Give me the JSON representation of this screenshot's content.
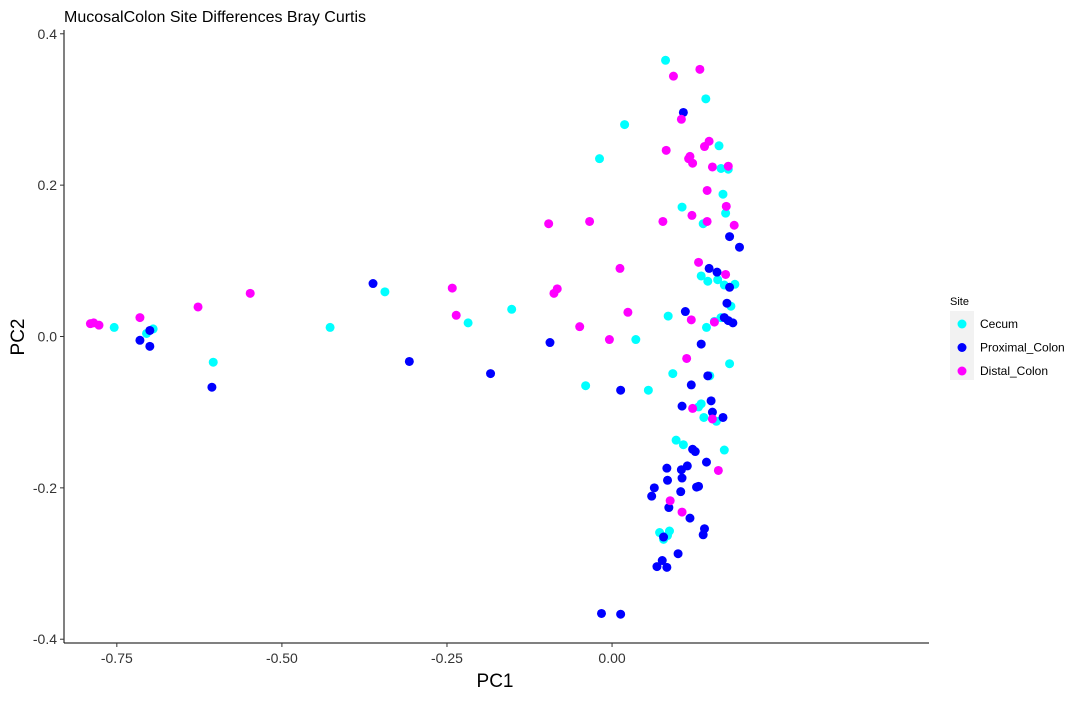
{
  "chart_data": {
    "type": "scatter",
    "title": "MucosalColon Site Differences Bray Curtis",
    "xlabel": "PC1",
    "ylabel": "PC2",
    "xlim": [
      -0.83,
      0.48
    ],
    "ylim": [
      -0.405,
      0.405
    ],
    "xticks": [
      {
        "value": -0.75,
        "label": "-0.75"
      },
      {
        "value": -0.5,
        "label": "-0.50"
      },
      {
        "value": -0.25,
        "label": "-0.25"
      },
      {
        "value": 0.0,
        "label": "0.00"
      }
    ],
    "yticks": [
      {
        "value": 0.4,
        "label": "0.4"
      },
      {
        "value": 0.2,
        "label": "0.2"
      },
      {
        "value": 0.0,
        "label": "0.0"
      },
      {
        "value": -0.2,
        "label": "-0.2"
      },
      {
        "value": -0.4,
        "label": "-0.4"
      }
    ],
    "grid": false,
    "legend": {
      "title": "Site",
      "position": "right"
    },
    "series": [
      {
        "name": "Cecum",
        "color": "#00FFFF",
        "points": [
          [
            -0.754,
            0.012
          ],
          [
            -0.705,
            0.004
          ],
          [
            -0.695,
            0.01
          ],
          [
            -0.604,
            -0.034
          ],
          [
            -0.427,
            0.012
          ],
          [
            -0.344,
            0.059
          ],
          [
            -0.218,
            0.018
          ],
          [
            -0.152,
            0.036
          ],
          [
            -0.04,
            -0.065
          ],
          [
            -0.019,
            0.235
          ],
          [
            0.019,
            0.28
          ],
          [
            0.036,
            -0.004
          ],
          [
            0.055,
            -0.071
          ],
          [
            0.081,
            0.365
          ],
          [
            0.085,
            0.027
          ],
          [
            0.092,
            -0.049
          ],
          [
            0.097,
            -0.137
          ],
          [
            0.106,
            0.171
          ],
          [
            0.108,
            -0.143
          ],
          [
            0.135,
            -0.089
          ],
          [
            0.138,
            0.149
          ],
          [
            0.142,
            0.314
          ],
          [
            0.143,
            0.012
          ],
          [
            0.158,
            -0.112
          ],
          [
            0.162,
            0.252
          ],
          [
            0.165,
            0.222
          ],
          [
            0.168,
            0.188
          ],
          [
            0.17,
            0.068
          ],
          [
            0.172,
            0.163
          ],
          [
            0.176,
            0.221
          ],
          [
            0.178,
            -0.036
          ],
          [
            0.18,
            0.04
          ],
          [
            0.186,
            0.069
          ],
          [
            0.17,
            -0.15
          ],
          [
            0.148,
            -0.052
          ],
          [
            0.139,
            -0.107
          ],
          [
            0.131,
            -0.093
          ],
          [
            0.087,
            -0.257
          ],
          [
            0.072,
            -0.259
          ],
          [
            0.078,
            -0.268
          ],
          [
            0.084,
            -0.263
          ],
          [
            0.135,
            0.08
          ],
          [
            0.145,
            0.073
          ],
          [
            0.16,
            0.075
          ],
          [
            0.155,
            0.02
          ],
          [
            0.165,
            0.025
          ]
        ]
      },
      {
        "name": "Proximal_Colon",
        "color": "#0000FF",
        "points": [
          [
            -0.715,
            -0.005
          ],
          [
            -0.7,
            0.008
          ],
          [
            -0.7,
            -0.013
          ],
          [
            -0.606,
            -0.067
          ],
          [
            -0.362,
            0.07
          ],
          [
            -0.307,
            -0.033
          ],
          [
            -0.184,
            -0.049
          ],
          [
            -0.094,
            -0.008
          ],
          [
            -0.016,
            -0.366
          ],
          [
            0.013,
            -0.367
          ],
          [
            0.013,
            -0.071
          ],
          [
            0.06,
            -0.211
          ],
          [
            0.064,
            -0.2
          ],
          [
            0.068,
            -0.304
          ],
          [
            0.076,
            -0.296
          ],
          [
            0.078,
            -0.265
          ],
          [
            0.083,
            -0.305
          ],
          [
            0.083,
            -0.174
          ],
          [
            0.084,
            -0.19
          ],
          [
            0.086,
            -0.226
          ],
          [
            0.1,
            -0.287
          ],
          [
            0.106,
            -0.187
          ],
          [
            0.104,
            -0.205
          ],
          [
            0.105,
            -0.176
          ],
          [
            0.106,
            -0.092
          ],
          [
            0.108,
            0.296
          ],
          [
            0.111,
            0.033
          ],
          [
            0.114,
            -0.171
          ],
          [
            0.118,
            -0.24
          ],
          [
            0.12,
            -0.064
          ],
          [
            0.122,
            -0.149
          ],
          [
            0.126,
            -0.152
          ],
          [
            0.128,
            -0.199
          ],
          [
            0.131,
            -0.198
          ],
          [
            0.135,
            -0.01
          ],
          [
            0.138,
            -0.262
          ],
          [
            0.14,
            -0.254
          ],
          [
            0.143,
            -0.166
          ],
          [
            0.145,
            -0.052
          ],
          [
            0.147,
            0.09
          ],
          [
            0.15,
            -0.085
          ],
          [
            0.152,
            -0.1
          ],
          [
            0.159,
            0.085
          ],
          [
            0.168,
            -0.107
          ],
          [
            0.17,
            0.025
          ],
          [
            0.174,
            0.044
          ],
          [
            0.176,
            0.021
          ],
          [
            0.178,
            0.065
          ],
          [
            0.178,
            0.132
          ],
          [
            0.183,
            0.018
          ],
          [
            0.193,
            0.118
          ]
        ]
      },
      {
        "name": "Distal_Colon",
        "color": "#FF00FF",
        "points": [
          [
            -0.79,
            0.017
          ],
          [
            -0.785,
            0.018
          ],
          [
            -0.777,
            0.015
          ],
          [
            -0.715,
            0.025
          ],
          [
            -0.627,
            0.039
          ],
          [
            -0.548,
            0.057
          ],
          [
            -0.242,
            0.064
          ],
          [
            -0.236,
            0.028
          ],
          [
            -0.096,
            0.149
          ],
          [
            -0.088,
            0.057
          ],
          [
            -0.083,
            0.063
          ],
          [
            -0.034,
            0.152
          ],
          [
            -0.049,
            0.013
          ],
          [
            -0.004,
            -0.004
          ],
          [
            0.012,
            0.09
          ],
          [
            0.024,
            0.032
          ],
          [
            0.077,
            0.152
          ],
          [
            0.082,
            0.246
          ],
          [
            0.088,
            -0.217
          ],
          [
            0.093,
            0.344
          ],
          [
            0.105,
            0.287
          ],
          [
            0.106,
            -0.232
          ],
          [
            0.113,
            -0.029
          ],
          [
            0.116,
            0.235
          ],
          [
            0.118,
            0.238
          ],
          [
            0.12,
            0.022
          ],
          [
            0.121,
            0.16
          ],
          [
            0.122,
            0.229
          ],
          [
            0.122,
            -0.095
          ],
          [
            0.131,
            0.098
          ],
          [
            0.133,
            0.353
          ],
          [
            0.14,
            0.251
          ],
          [
            0.144,
            0.193
          ],
          [
            0.144,
            0.152
          ],
          [
            0.147,
            0.258
          ],
          [
            0.152,
            0.224
          ],
          [
            0.155,
            0.019
          ],
          [
            0.152,
            -0.109
          ],
          [
            0.161,
            -0.177
          ],
          [
            0.172,
            0.082
          ],
          [
            0.173,
            0.172
          ],
          [
            0.176,
            0.225
          ],
          [
            0.185,
            0.147
          ]
        ]
      }
    ]
  }
}
